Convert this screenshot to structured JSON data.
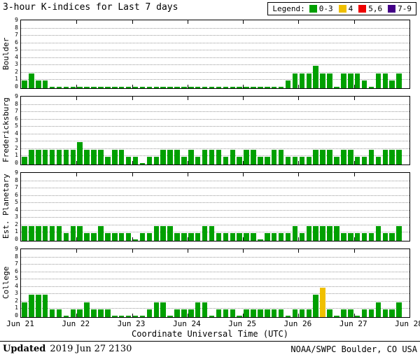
{
  "chart_data": {
    "type": "bar",
    "title": "3-hour K-indices for Last 7 days",
    "xlabel": "Coordinate Universal Time (UTC)",
    "ylim": [
      0,
      9
    ],
    "yticks": [
      0,
      1,
      2,
      3,
      4,
      5,
      6,
      7,
      8,
      9
    ],
    "bin_hours": 3,
    "bins_per_day": 8,
    "x_tick_labels": [
      "Jun 21",
      "Jun 22",
      "Jun 23",
      "Jun 24",
      "Jun 25",
      "Jun 26",
      "Jun 27",
      "Jun 28"
    ],
    "series": [
      {
        "name": "Boulder",
        "values": [
          1,
          2,
          1,
          1,
          0,
          0,
          0,
          0,
          0,
          0,
          0,
          0,
          0,
          0,
          0,
          0,
          0,
          0,
          0,
          0,
          0,
          0,
          0,
          0,
          0,
          0,
          0,
          0,
          0,
          0,
          0,
          0,
          0,
          0,
          0,
          0,
          0,
          0,
          1,
          2,
          2,
          2,
          3,
          2,
          2,
          0,
          2,
          2,
          2,
          1,
          0,
          2,
          2,
          1,
          2,
          null
        ]
      },
      {
        "name": "Fredericksburg",
        "values": [
          1,
          2,
          2,
          2,
          2,
          2,
          2,
          2,
          3,
          2,
          2,
          2,
          1,
          2,
          2,
          1,
          1,
          0,
          1,
          1,
          2,
          2,
          2,
          1,
          2,
          1,
          2,
          2,
          2,
          1,
          2,
          1,
          2,
          2,
          1,
          1,
          2,
          2,
          1,
          1,
          1,
          1,
          2,
          2,
          2,
          1,
          2,
          2,
          1,
          1,
          2,
          1,
          2,
          2,
          2,
          null
        ]
      },
      {
        "name": "Est. Planetary",
        "values": [
          2,
          2,
          2,
          2,
          2,
          2,
          1,
          2,
          2,
          1,
          1,
          2,
          1,
          1,
          1,
          1,
          0,
          1,
          1,
          2,
          2,
          2,
          1,
          1,
          1,
          1,
          2,
          2,
          1,
          1,
          1,
          1,
          1,
          1,
          0,
          1,
          1,
          1,
          1,
          2,
          1,
          2,
          2,
          2,
          2,
          2,
          1,
          1,
          1,
          1,
          1,
          2,
          1,
          1,
          2,
          null
        ]
      },
      {
        "name": "College",
        "values": [
          2,
          3,
          3,
          3,
          1,
          1,
          0,
          1,
          1,
          2,
          1,
          1,
          1,
          0,
          0,
          0,
          0,
          0,
          1,
          2,
          2,
          0,
          1,
          1,
          1,
          2,
          2,
          0,
          1,
          1,
          1,
          0,
          1,
          1,
          1,
          1,
          1,
          1,
          0,
          1,
          1,
          1,
          3,
          4,
          1,
          0,
          1,
          1,
          0,
          1,
          1,
          2,
          1,
          1,
          2,
          null
        ]
      }
    ],
    "color_rules": [
      {
        "range": [
          0,
          3
        ],
        "color": "#00A000"
      },
      {
        "range": [
          4,
          4
        ],
        "color": "#F0C000"
      },
      {
        "range": [
          5,
          6
        ],
        "color": "#EE0000"
      },
      {
        "range": [
          7,
          9
        ],
        "color": "#440088"
      }
    ]
  },
  "legend": {
    "label": "Legend:",
    "items": [
      {
        "label": "0-3",
        "color": "#00A000"
      },
      {
        "label": "4",
        "color": "#F0C000"
      },
      {
        "label": "5,6",
        "color": "#EE0000"
      },
      {
        "label": "7-9",
        "color": "#440088"
      }
    ]
  },
  "footer": {
    "updated_label": "Updated",
    "updated_value": "2019 Jun 27 2130",
    "credit": "NOAA/SWPC Boulder, CO USA"
  }
}
